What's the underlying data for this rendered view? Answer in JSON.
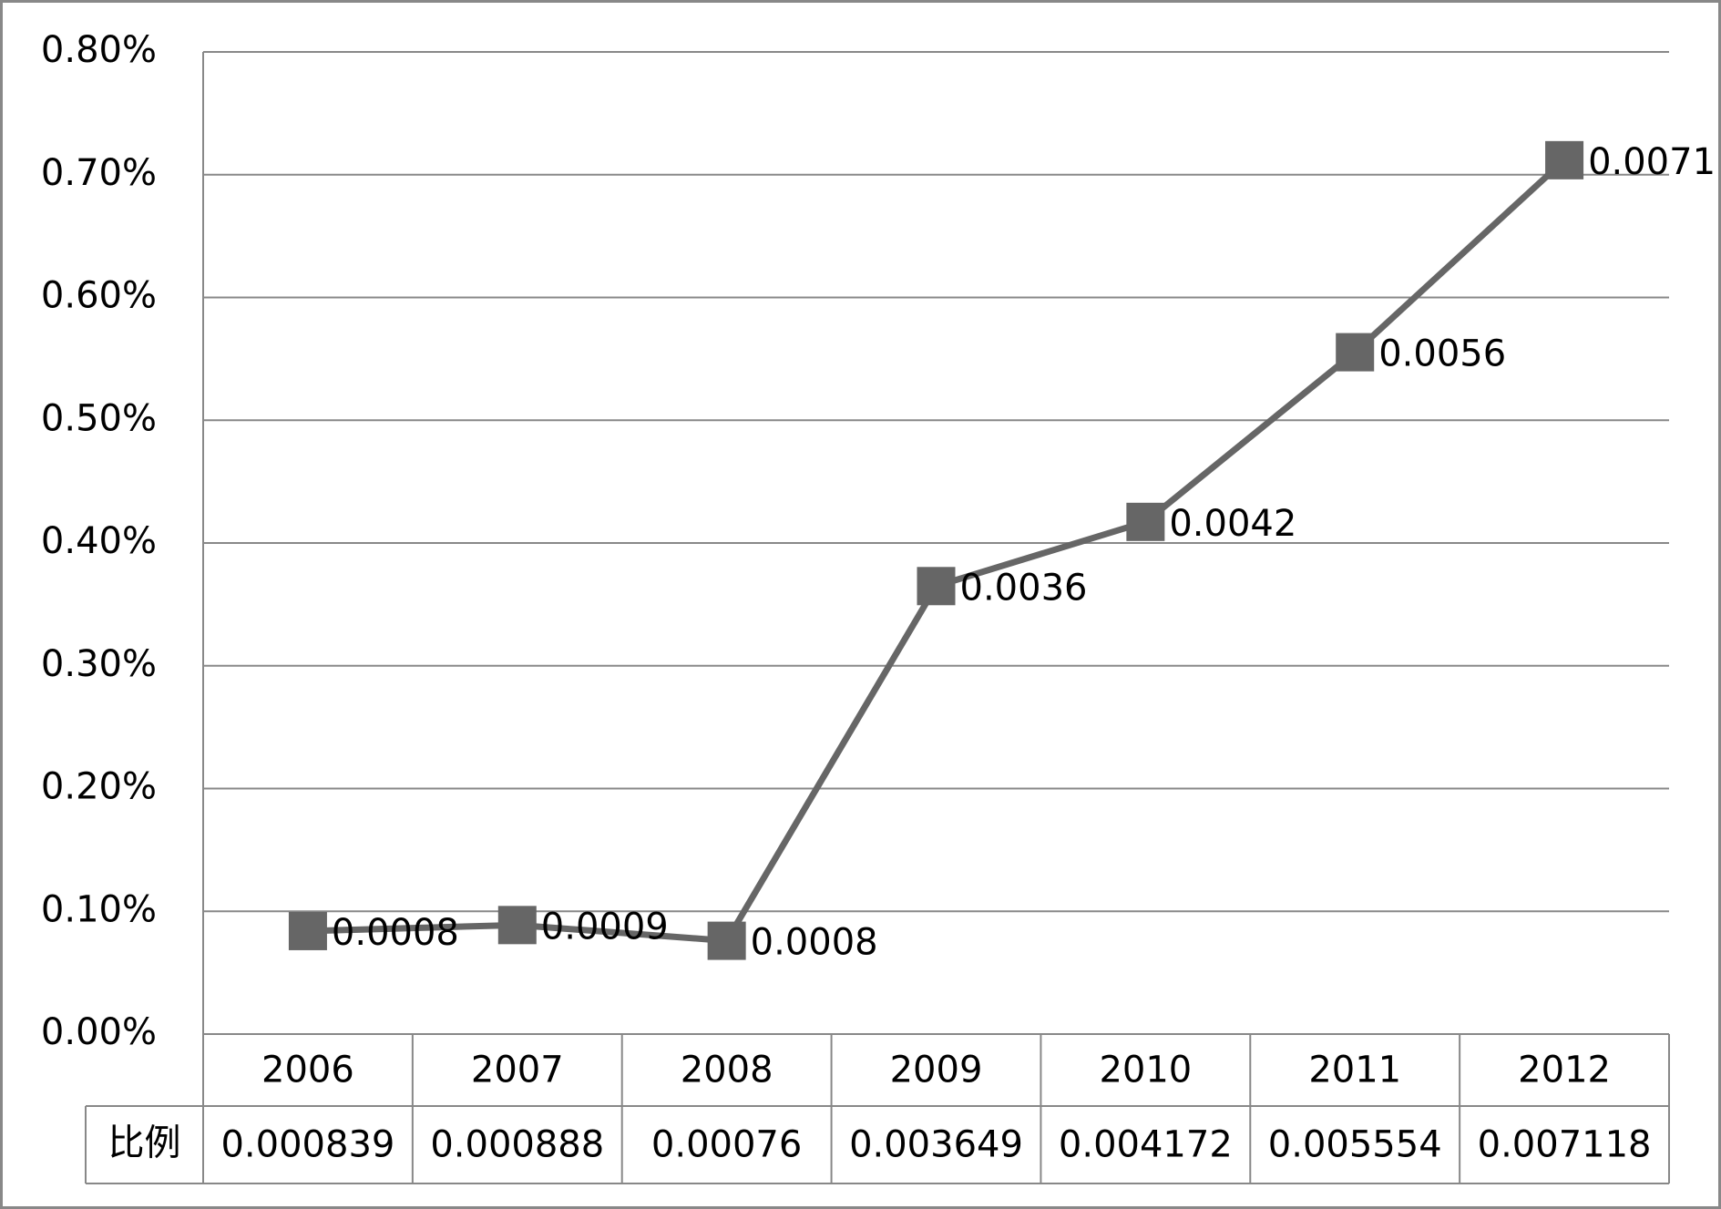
{
  "chart_data": {
    "type": "line",
    "categories": [
      "2006",
      "2007",
      "2008",
      "2009",
      "2010",
      "2011",
      "2012"
    ],
    "series": [
      {
        "name": "比例",
        "color": "#666666",
        "values": [
          0.000839,
          0.000888,
          0.00076,
          0.003649,
          0.004172,
          0.005554,
          0.007118
        ],
        "value_labels": [
          "0.0008",
          "0.0009",
          "0.0008",
          "0.0036",
          "0.0042",
          "0.0056",
          "0.0071"
        ]
      }
    ],
    "ylim": [
      0,
      0.008
    ],
    "yticks": [
      {
        "value": 0,
        "label": "0.00%"
      },
      {
        "value": 0.001,
        "label": "0.10%"
      },
      {
        "value": 0.002,
        "label": "0.20%"
      },
      {
        "value": 0.003,
        "label": "0.30%"
      },
      {
        "value": 0.004,
        "label": "0.40%"
      },
      {
        "value": 0.005,
        "label": "0.50%"
      },
      {
        "value": 0.006,
        "label": "0.60%"
      },
      {
        "value": 0.007,
        "label": "0.70%"
      },
      {
        "value": 0.008,
        "label": "0.80%"
      }
    ],
    "grid": true,
    "data_table": true
  }
}
